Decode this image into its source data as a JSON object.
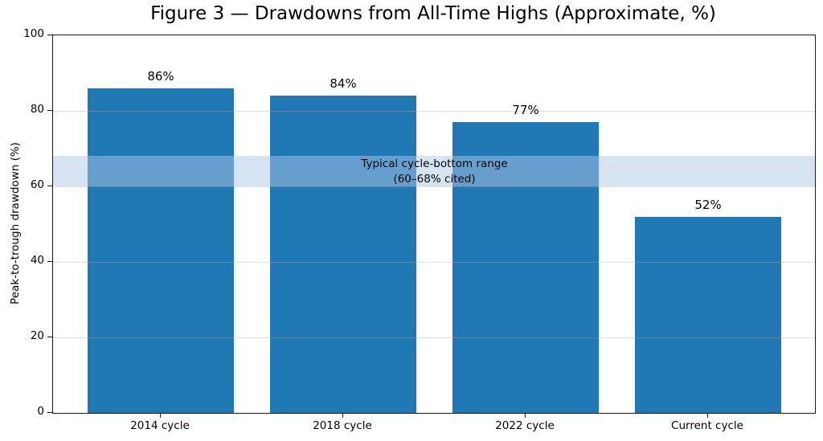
{
  "chart_data": {
    "type": "bar",
    "title": "Figure 3 — Drawdowns from All-Time Highs (Approximate, %)",
    "categories": [
      "2014 cycle",
      "2018 cycle",
      "2022 cycle",
      "Current cycle"
    ],
    "values": [
      86,
      84,
      77,
      52
    ],
    "bar_labels": [
      "86%",
      "84%",
      "77%",
      "52%"
    ],
    "xlabel": "",
    "ylabel": "Peak-to-trough drawdown (%)",
    "ylim": [
      0,
      100
    ],
    "yticks": [
      0,
      20,
      40,
      60,
      80,
      100
    ],
    "grid": true,
    "legend": "none",
    "bar_color": "#1f77b4",
    "band": {
      "from": 60,
      "to": 68,
      "fill": "#aec7e8",
      "opacity": 0.5,
      "label_line1": "Typical cycle-bottom range",
      "label_line2": "(60–68% cited)",
      "label_center_category_index": 1.5
    }
  }
}
